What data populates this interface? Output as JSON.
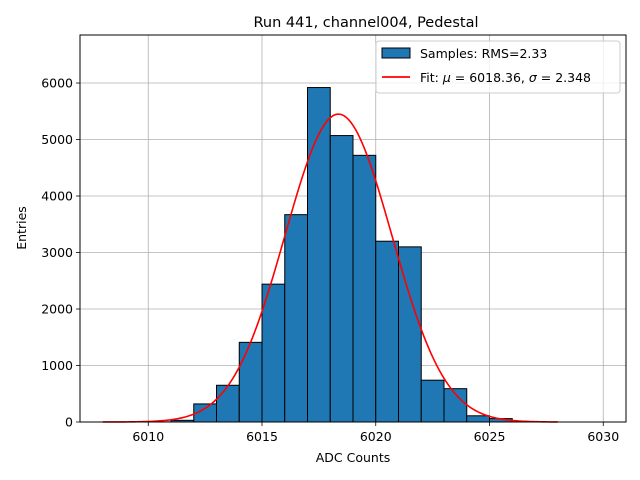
{
  "chart_data": {
    "type": "bar",
    "title": "Run 441, channel004, Pedestal",
    "xlabel": "ADC Counts",
    "ylabel": "Entries",
    "xlim": [
      6007,
      6031
    ],
    "ylim": [
      0,
      6850
    ],
    "xticks": [
      6010,
      6015,
      6020,
      6025,
      6030
    ],
    "xtick_labels": [
      "6010",
      "6015",
      "6020",
      "6025",
      "6030"
    ],
    "yticks": [
      0,
      1000,
      2000,
      3000,
      4000,
      5000,
      6000
    ],
    "ytick_labels": [
      "0",
      "1000",
      "2000",
      "3000",
      "4000",
      "5000",
      "6000"
    ],
    "grid": true,
    "legend_position": "top-right",
    "bin_edges": [
      6010,
      6011,
      6012,
      6013,
      6014,
      6015,
      6016,
      6017,
      6018,
      6019,
      6020,
      6021,
      6022,
      6023,
      6024,
      6025,
      6026
    ],
    "series": [
      {
        "name": "Samples: RMS=2.33",
        "type": "histogram",
        "color": "#1f77b4",
        "edgecolor": "#000000",
        "values": [
          2,
          30,
          320,
          650,
          1410,
          2440,
          3670,
          5920,
          5070,
          4720,
          3200,
          3100,
          740,
          590,
          110,
          60
        ]
      },
      {
        "name_prefix": "Fit: ",
        "name_mu": "μ",
        "name_mid": " = 6018.36, ",
        "name_sigma": "σ",
        "name_suffix": " = 2.348",
        "type": "line",
        "color": "#ff0000",
        "mu": 6018.36,
        "sigma": 2.348,
        "amplitude": 5450,
        "x_range": [
          6008,
          6028
        ]
      }
    ]
  }
}
